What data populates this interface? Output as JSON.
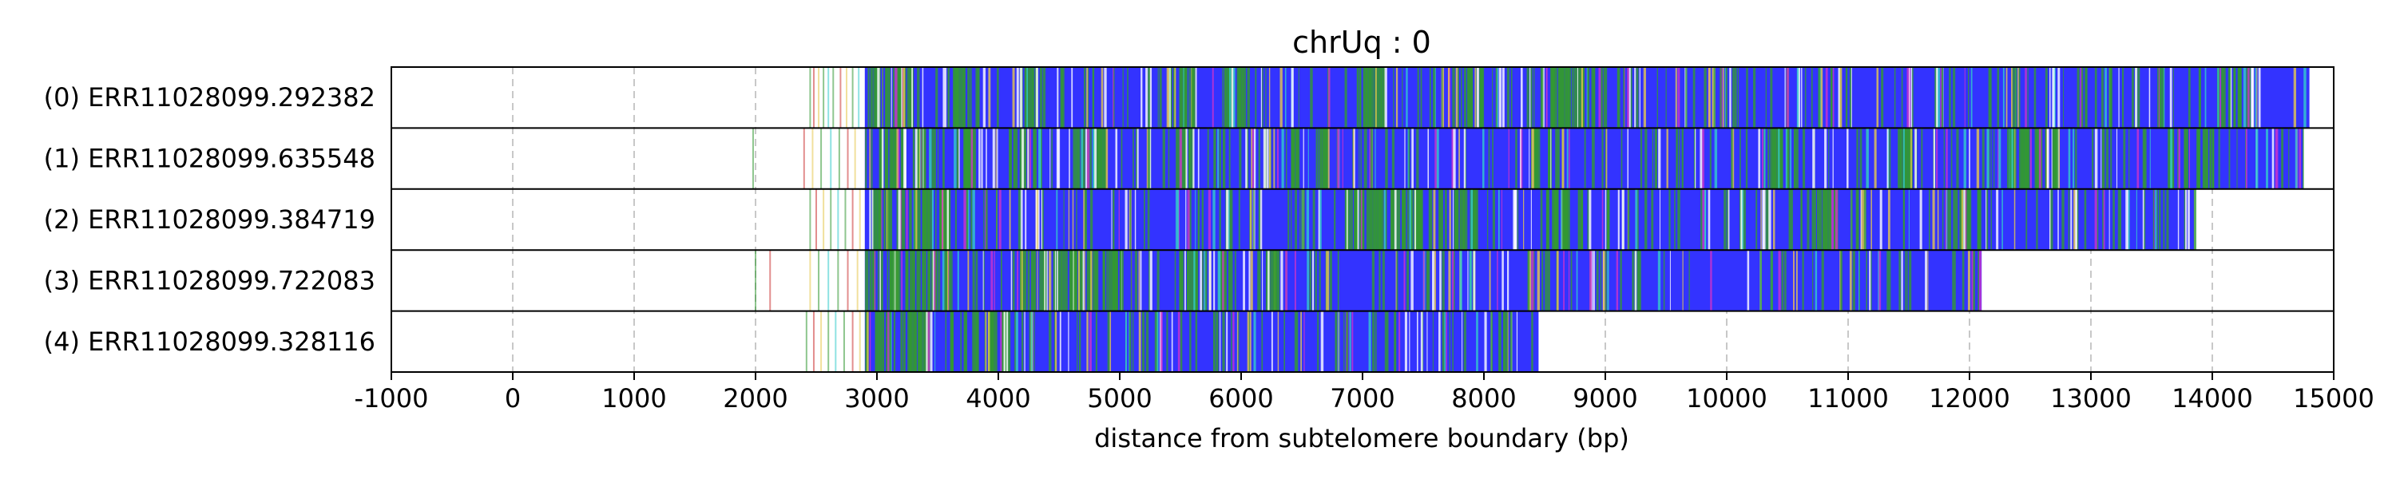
{
  "chart_data": {
    "type": "heatmap",
    "title": "chrUq : 0",
    "xlabel": "distance from subtelomere boundary (bp)",
    "ylabel": "",
    "xlim": [
      -1000,
      15000
    ],
    "xticks": [
      -1000,
      0,
      1000,
      2000,
      3000,
      4000,
      5000,
      6000,
      7000,
      8000,
      9000,
      10000,
      11000,
      12000,
      13000,
      14000,
      15000
    ],
    "grid": "vertical dashed",
    "legend": "none",
    "colors": {
      "main": "#3333ff",
      "alt": "#339933",
      "rare": [
        "#cc3333",
        "#e6c84d",
        "#33cccc",
        "#cc33cc",
        "#ffffff"
      ]
    },
    "reads": [
      {
        "label": "(0) ERR11028099.292382",
        "start": 2900,
        "end": 14800,
        "prelude": [
          2450,
          2480,
          2520,
          2560,
          2600,
          2640,
          2700,
          2750,
          2800,
          2850
        ],
        "alt_regions": [
          [
            2900,
            3300
          ],
          [
            3550,
            3750
          ],
          [
            4100,
            4400
          ],
          [
            5400,
            5600
          ],
          [
            5850,
            6050
          ],
          [
            6950,
            7200
          ],
          [
            7800,
            8050
          ],
          [
            8500,
            9000
          ],
          [
            14000,
            14300
          ]
        ]
      },
      {
        "label": "(1) ERR11028099.635548",
        "start": 2900,
        "end": 14750,
        "prelude": [
          1980,
          2400,
          2470,
          2540,
          2620,
          2690,
          2760,
          2820
        ],
        "alt_regions": [
          [
            3000,
            3800
          ],
          [
            4050,
            4300
          ],
          [
            4600,
            4900
          ],
          [
            5400,
            5600
          ],
          [
            6400,
            6700
          ],
          [
            8400,
            8600
          ],
          [
            10300,
            10600
          ],
          [
            11300,
            11500
          ],
          [
            12300,
            12700
          ],
          [
            13600,
            14000
          ]
        ]
      },
      {
        "label": "(2) ERR11028099.384719",
        "start": 2900,
        "end": 13850,
        "prelude": [
          2450,
          2500,
          2560,
          2620,
          2680,
          2740,
          2800,
          2860
        ],
        "alt_regions": [
          [
            2900,
            3600
          ],
          [
            6850,
            7950
          ],
          [
            8500,
            8800
          ],
          [
            10500,
            10900
          ],
          [
            11800,
            12000
          ]
        ]
      },
      {
        "label": "(3) ERR11028099.722083",
        "start": 2900,
        "end": 12100,
        "prelude": [
          2000,
          2120,
          2450,
          2520,
          2600,
          2680,
          2760,
          2840
        ],
        "alt_regions": [
          [
            2900,
            3600
          ],
          [
            4100,
            5000
          ],
          [
            5500,
            5900
          ],
          [
            6100,
            6300
          ]
        ]
      },
      {
        "label": "(4) ERR11028099.328116",
        "start": 2900,
        "end": 8450,
        "prelude": [
          2420,
          2480,
          2540,
          2600,
          2660,
          2730,
          2800,
          2860
        ],
        "alt_regions": [
          [
            2900,
            3400
          ],
          [
            3600,
            4100
          ]
        ]
      }
    ]
  }
}
